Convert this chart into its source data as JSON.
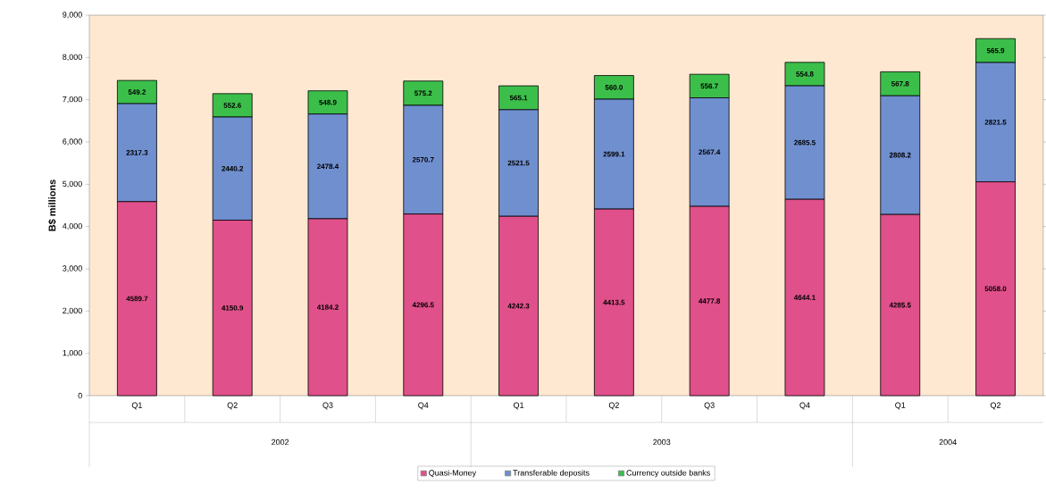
{
  "chart_data": {
    "type": "bar",
    "stacked": true,
    "ylabel": "B$ millions",
    "categories": [
      "Q1",
      "Q2",
      "Q3",
      "Q4",
      "Q1",
      "Q2",
      "Q3",
      "Q4",
      "Q1",
      "Q2"
    ],
    "annotations": [
      "2002",
      "2003",
      "2004"
    ],
    "series": [
      {
        "name": "Quasi-Money",
        "color": "#e0508a",
        "values": [
          4589.7,
          4150.9,
          4184.2,
          4296.5,
          4242.3,
          4413.5,
          4477.8,
          4644.1,
          4285.5,
          5058.0
        ],
        "value_labels": [
          "4589.7",
          "4150.9",
          "4184.2",
          "4296.5",
          "4242.3",
          "4413.5",
          "4477.8",
          "4644.1",
          "4285.5",
          "5058.0"
        ]
      },
      {
        "name": "Transferable deposits",
        "color": "#6f8fcf",
        "values": [
          2317.3,
          2440.2,
          2478.4,
          2570.7,
          2521.5,
          2599.1,
          2567.4,
          2685.5,
          2808.2,
          2821.5
        ],
        "value_labels": [
          "2317.3",
          "2440.2",
          "2478.4",
          "2570.7",
          "2521.5",
          "2599.1",
          "2567.4",
          "2685.5",
          "2808.2",
          "2821.5"
        ]
      },
      {
        "name": "Currency outside banks",
        "color": "#3cbf4a",
        "values": [
          549.2,
          552.6,
          548.9,
          575.2,
          565.1,
          560.0,
          556.7,
          554.8,
          567.8,
          565.9
        ],
        "value_labels": [
          "549.2",
          "552.6",
          "548.9",
          "575.2",
          "565.1",
          "560.0",
          "556.7",
          "554.8",
          "567.8",
          "565.9"
        ]
      }
    ],
    "ylim": [
      0,
      9000
    ],
    "yticks": [
      0,
      {
        "value": 1000,
        "label": "1,000"
      },
      {
        "value": 2000,
        "label": "2,000"
      },
      {
        "value": 3000,
        "label": "3,000"
      },
      {
        "value": 4000,
        "label": "4,000"
      },
      {
        "value": 5000,
        "label": "5,000"
      },
      {
        "value": 6000,
        "label": "6,000"
      },
      {
        "value": 7000,
        "label": "7,000"
      },
      {
        "value": 8000,
        "label": "8,000"
      },
      {
        "value": 9000,
        "label": "9,000"
      }
    ],
    "legend": "bottom"
  }
}
